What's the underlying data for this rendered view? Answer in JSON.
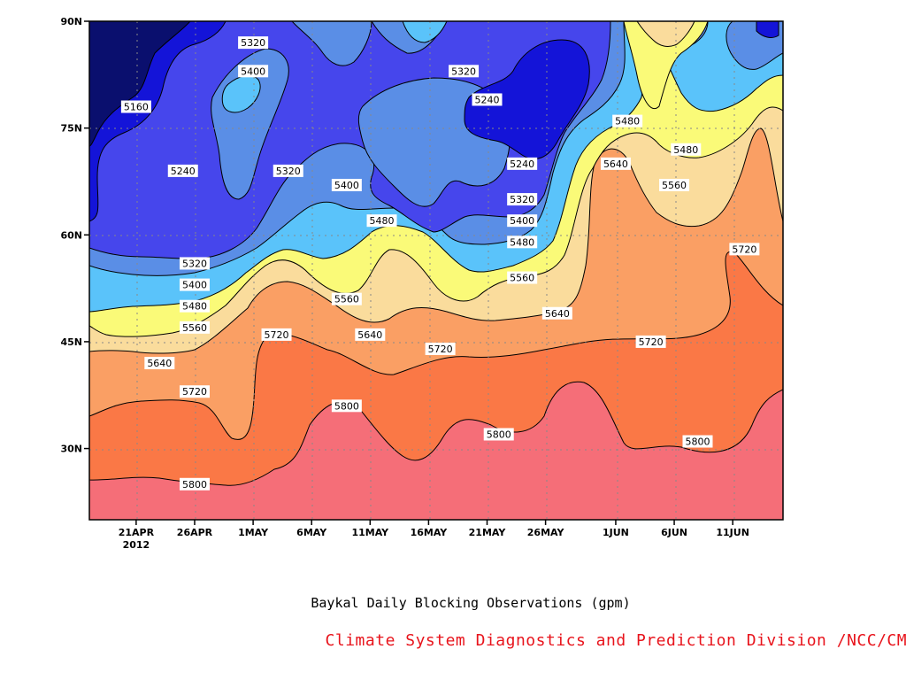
{
  "caption": {
    "title": "Baykal Daily Blocking Observations (gpm)",
    "source": "Climate System Diagnostics and Prediction Division /NCC/CMA"
  },
  "chart_data": {
    "type": "heatmap",
    "title": "Baykal Daily Blocking Observations (gpm)",
    "xlabel": "",
    "ylabel": "",
    "ylim": [
      "20N",
      "90N"
    ],
    "y_ticks": [
      "30N",
      "45N",
      "60N",
      "75N",
      "90N"
    ],
    "x_ticks": [
      "21APR",
      "26APR",
      "1MAY",
      "6MAY",
      "11MAY",
      "16MAY",
      "21MAY",
      "26MAY",
      "1JUN",
      "6JUN",
      "11JUN"
    ],
    "x_year_label": "2012",
    "grid": true,
    "contour_levels": [
      5160,
      5240,
      5320,
      5400,
      5480,
      5560,
      5640,
      5720,
      5800
    ],
    "fill_colors": {
      "below_5160": "#0a0f6e",
      "5160_5240": "#1414d8",
      "5240_5320": "#4646ec",
      "5320_5400": "#5a8ee6",
      "5400_5480": "#5ac3fa",
      "5480_5560": "#fafa78",
      "5560_5640": "#fadc9c",
      "5640_5720": "#fa9f64",
      "5720_5800": "#fa7846",
      "above_5800": "#f56e78"
    },
    "contour_labels": [
      {
        "text": "5160",
        "date": "21APR",
        "lat": 78
      },
      {
        "text": "5240",
        "date": "25APR",
        "lat": 69
      },
      {
        "text": "5320",
        "date": "1MAY",
        "lat": 87
      },
      {
        "text": "5400",
        "date": "1MAY",
        "lat": 83
      },
      {
        "text": "5320",
        "date": "4MAY",
        "lat": 69
      },
      {
        "text": "5400",
        "date": "9MAY",
        "lat": 67
      },
      {
        "text": "5480",
        "date": "12MAY",
        "lat": 62
      },
      {
        "text": "5320",
        "date": "19MAY",
        "lat": 83
      },
      {
        "text": "5240",
        "date": "21MAY",
        "lat": 79
      },
      {
        "text": "5240",
        "date": "24MAY",
        "lat": 70
      },
      {
        "text": "5320",
        "date": "24MAY",
        "lat": 65
      },
      {
        "text": "5400",
        "date": "24MAY",
        "lat": 62
      },
      {
        "text": "5480",
        "date": "24MAY",
        "lat": 59
      },
      {
        "text": "5560",
        "date": "24MAY",
        "lat": 54
      },
      {
        "text": "5640",
        "date": "27MAY",
        "lat": 49
      },
      {
        "text": "5320",
        "date": "26APR",
        "lat": 56
      },
      {
        "text": "5400",
        "date": "26APR",
        "lat": 53
      },
      {
        "text": "5480",
        "date": "26APR",
        "lat": 50
      },
      {
        "text": "5560",
        "date": "26APR",
        "lat": 47
      },
      {
        "text": "5640",
        "date": "23APR",
        "lat": 42
      },
      {
        "text": "5720",
        "date": "26APR",
        "lat": 38
      },
      {
        "text": "5800",
        "date": "26APR",
        "lat": 25
      },
      {
        "text": "5720",
        "date": "3MAY",
        "lat": 46
      },
      {
        "text": "5560",
        "date": "9MAY",
        "lat": 51
      },
      {
        "text": "5640",
        "date": "11MAY",
        "lat": 46
      },
      {
        "text": "5800",
        "date": "9MAY",
        "lat": 36
      },
      {
        "text": "5720",
        "date": "17MAY",
        "lat": 44
      },
      {
        "text": "5800",
        "date": "22MAY",
        "lat": 32
      },
      {
        "text": "5640",
        "date": "1JUN",
        "lat": 70
      },
      {
        "text": "5480",
        "date": "2JUN",
        "lat": 76
      },
      {
        "text": "5480",
        "date": "7JUN",
        "lat": 72
      },
      {
        "text": "5560",
        "date": "6JUN",
        "lat": 67
      },
      {
        "text": "5720",
        "date": "4JUN",
        "lat": 45
      },
      {
        "text": "5720",
        "date": "12JUN",
        "lat": 58
      },
      {
        "text": "5800",
        "date": "8JUN",
        "lat": 31
      }
    ]
  }
}
